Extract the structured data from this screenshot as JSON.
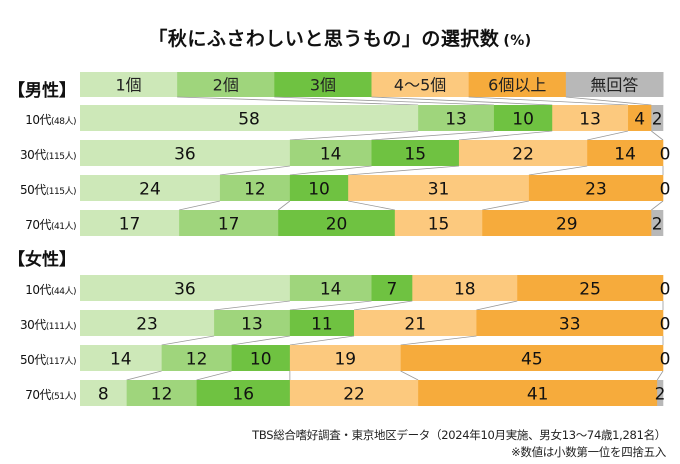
{
  "chart_data": {
    "type": "bar",
    "orientation": "horizontal",
    "stacked": true,
    "normalized": true,
    "title": "「秋にふさわしいと思うもの」の選択数",
    "unit": "(%)",
    "xlim": [
      0,
      100
    ],
    "legend": {
      "placement": "top",
      "entries": [
        "1個",
        "2個",
        "3個",
        "4～5個",
        "6個以上",
        "無回答"
      ]
    },
    "colors": [
      "#cde8b8",
      "#9fd57c",
      "#6fc241",
      "#fcc97e",
      "#f6ab3c",
      "#b8b8b8"
    ],
    "groups": [
      {
        "label": "【男性】",
        "rows": [
          {
            "age": "10代",
            "n": "(48人)",
            "values": [
              58,
              13,
              10,
              13,
              4,
              2
            ]
          },
          {
            "age": "30代",
            "n": "(115人)",
            "values": [
              36,
              14,
              15,
              22,
              14,
              0
            ]
          },
          {
            "age": "50代",
            "n": "(115人)",
            "values": [
              24,
              12,
              10,
              31,
              23,
              0
            ]
          },
          {
            "age": "70代",
            "n": "(41人)",
            "values": [
              17,
              17,
              20,
              15,
              29,
              2
            ]
          }
        ]
      },
      {
        "label": "【女性】",
        "rows": [
          {
            "age": "10代",
            "n": "(44人)",
            "values": [
              36,
              14,
              7,
              18,
              25,
              0
            ]
          },
          {
            "age": "30代",
            "n": "(111人)",
            "values": [
              23,
              13,
              11,
              21,
              33,
              0
            ]
          },
          {
            "age": "50代",
            "n": "(117人)",
            "values": [
              14,
              12,
              10,
              19,
              45,
              0
            ]
          },
          {
            "age": "70代",
            "n": "(51人)",
            "values": [
              8,
              12,
              16,
              22,
              41,
              2
            ]
          }
        ]
      }
    ]
  },
  "footnotes": {
    "source": "TBS総合嗜好調査・東京地区データ（2024年10月実施、男女13～74歳1,281名）",
    "note": "※数値は小数第一位を四捨五入"
  }
}
